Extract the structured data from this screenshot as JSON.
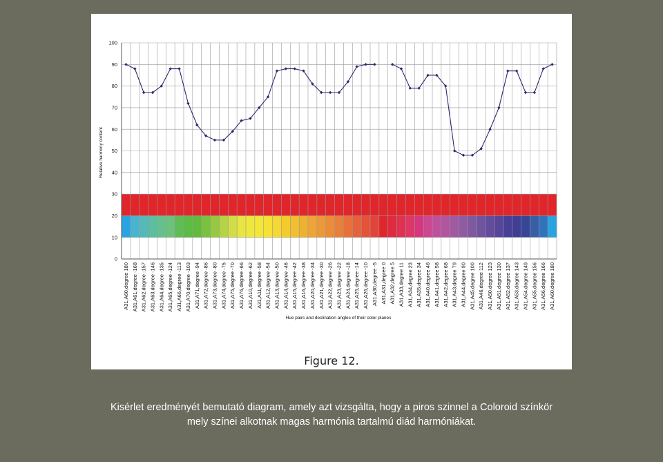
{
  "figure_caption": "Figure 12.",
  "slide_caption": "Kisérlet eredményét bemutató diagram, amely azt vizsgálta, hogy a piros szinnel a Coloroid színkör mely színei alkotnak magas harmónia tartalmú diád harmóniákat.",
  "chart_data": {
    "type": "line",
    "title": "",
    "xlabel": "Hue pairs and declination angles of their color planes",
    "ylabel": "Relative harmony content",
    "ylim": [
      0,
      100
    ],
    "yticks": [
      0,
      10,
      20,
      30,
      40,
      50,
      60,
      70,
      80,
      90,
      100
    ],
    "grid": true,
    "categories": [
      "A31,A60,degree 180",
      "A31,A61,degree -168",
      "A31,A62,degree -157",
      "A31,A63,degree -146",
      "A31,A64,degree -135",
      "A31,A65,degree -124",
      "A31,A66,degree -113",
      "A31,A70,degree -103",
      "A31,A71,degree -94",
      "A31,A72,degree -86",
      "A31,A73,degree -80",
      "A31,A74,degree -75",
      "A31,A75,degree -70",
      "A31,A76,degree -66",
      "A31,A10,degree -62",
      "A31,A11,degree -58",
      "A31,A12,degree -54",
      "A31,A13,degree -50",
      "A31,A14,degree -46",
      "A31,A15,degree -42",
      "A31,A16,degree -38",
      "A31,A20,degree -34",
      "A31,A21,degree -30",
      "A31,A22,degree -26",
      "A31,A23,degree -22",
      "A31,A24,degree -18",
      "A31,A25,degree -14",
      "A31,A26,degree -10",
      "A31,A30,degree -5",
      "A31,A31,degree 0",
      "A31,A32,degree 5",
      "A31,A33,degree 11",
      "A31,A34,degree 23",
      "A31,A35,degree 34",
      "A31,A40,degree 46",
      "A31,A41,degree 58",
      "A31,A42,degree 68",
      "A31,A43,degree 79",
      "A31,A44,degree 90",
      "A31,A45,degree 100",
      "A31,A46,degree 112",
      "A31,A50,degree 123",
      "A31,A51,degree 130",
      "A31,A52,degree 137",
      "A31,A53,degree 143",
      "A31,A54,degree 149",
      "A31,A55,degree 156",
      "A31,A56,degree 166",
      "A31,A60,degree 180"
    ],
    "series": [
      {
        "values": [
          90,
          88,
          77,
          77,
          80,
          88,
          88,
          72,
          62,
          57,
          55,
          55,
          59,
          64,
          65,
          70,
          75,
          87,
          88,
          88,
          87,
          81,
          77,
          77,
          77,
          82,
          89,
          90,
          90,
          null,
          90,
          88,
          79,
          79,
          85,
          85,
          80,
          50,
          48,
          48,
          51,
          60,
          70,
          87,
          87,
          77,
          77,
          88,
          90
        ],
        "color": "#2b2a6e"
      }
    ],
    "red_band": {
      "from": 20,
      "to": 30,
      "color": "#e0262b"
    },
    "hue_band": {
      "from": 10,
      "to": 20,
      "colors": [
        "#2aa3e0",
        "#48b4d0",
        "#55b9b7",
        "#5cbda0",
        "#66c08d",
        "#6cc27a",
        "#60bc55",
        "#5bbb45",
        "#62bb3c",
        "#7ac13f",
        "#95c940",
        "#b5d345",
        "#d2dd46",
        "#e6e544",
        "#eee73c",
        "#f2e738",
        "#f5e235",
        "#f5d832",
        "#f4cb2c",
        "#f2bf2f",
        "#efb134",
        "#eea436",
        "#ed9838",
        "#eb8c39",
        "#e97f39",
        "#e8703a",
        "#e6623a",
        "#e4523a",
        "#e3443a",
        "#e0262b",
        "#df2b3f",
        "#de3250",
        "#dc3766",
        "#d7357d",
        "#cc4690",
        "#c0509c",
        "#b0559e",
        "#a05aa0",
        "#8f5ba1",
        "#7e58a1",
        "#70539f",
        "#634c9c",
        "#564599",
        "#483f96",
        "#3e3f95",
        "#374597",
        "#3a5ea6",
        "#2f74bb",
        "#2aa3e0"
      ]
    }
  }
}
